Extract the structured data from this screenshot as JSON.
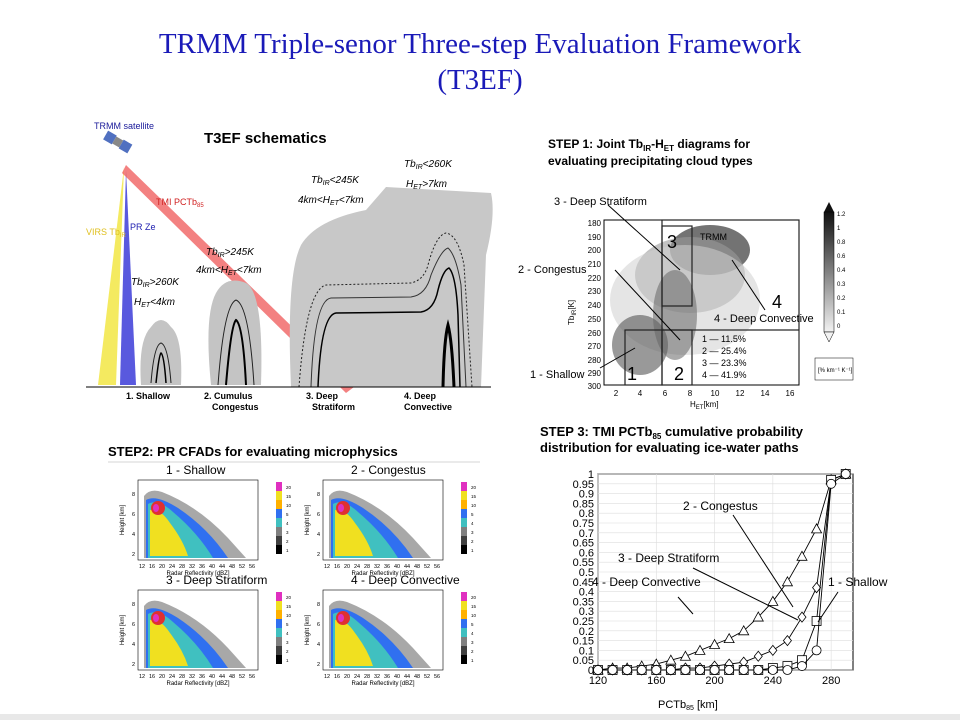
{
  "slide": {
    "title_line1": "TRMM Triple-senor Three-step Evaluation Framework",
    "title_line2": "(T3EF)"
  },
  "schematic": {
    "heading": "T3EF schematics",
    "satellite_label": "TRMM satellite",
    "virs_label": "VIRS Tb",
    "virs_sub": "IR",
    "pr_label": "PR Ze",
    "tmi_label": "TMI PCTb",
    "tmi_sub": "85",
    "categories": [
      "1. Shallow",
      "2. Cumulus",
      "3. Deep",
      "4. Deep"
    ],
    "categories_line2": [
      "",
      "Congestus",
      "Stratiform",
      "Convective"
    ],
    "criteria": [
      {
        "l1": "Tb",
        "l1s": "IR",
        "l1r": ">260K",
        "l2": "H",
        "l2s": "ET",
        "l2r": "<4km"
      },
      {
        "l1": "Tb",
        "l1s": "IR",
        "l1r": ">245K",
        "l2": "4km<H",
        "l2s": "ET",
        "l2r": "<7km"
      },
      {
        "l1": "Tb",
        "l1s": "IR",
        "l1r": "<245K",
        "l2": "4km<H",
        "l2s": "ET",
        "l2r": "<7km"
      },
      {
        "l1": "Tb",
        "l1s": "IR",
        "l1r": "<260K",
        "l2": "H",
        "l2s": "ET",
        "l2r": ">7km"
      }
    ],
    "colors": {
      "virs": "#f4ea60",
      "pr": "#3c3cd8",
      "tmi": "#ee4c4c",
      "cloud": "#c8c8c8"
    }
  },
  "step1": {
    "heading_a": "STEP 1: Joint Tb",
    "heading_a_sub": "IR",
    "heading_b": "-H",
    "heading_b_sub": "ET",
    "heading_c": " diagrams for",
    "heading_line2": "evaluating precipitating cloud types",
    "plot_title": "TRMM",
    "ylabel": "Tb",
    "ylabel_sub": "IR",
    "ylabel_unit": "[K]",
    "xlabel": "H",
    "xlabel_sub": "ET",
    "xlabel_unit": "[km]",
    "yticks": [
      "180",
      "190",
      "200",
      "210",
      "220",
      "230",
      "240",
      "250",
      "260",
      "270",
      "280",
      "290",
      "300"
    ],
    "xticks": [
      "2",
      "4",
      "6",
      "8",
      "10",
      "12",
      "14",
      "16"
    ],
    "box_numbers": [
      "1",
      "2",
      "3",
      "4"
    ],
    "legend_rows": [
      "1  —  11.5%",
      "2  —  25.4%",
      "3  —  23.3%",
      "4  —  41.9%"
    ],
    "annotations": [
      "3 - Deep Stratiform",
      "2 - Congestus",
      "4 - Deep Convective",
      "1 - Shallow"
    ],
    "colorbar_ticks": [
      "1.2",
      "1",
      "0.8",
      "0.6",
      "0.4",
      "0.3",
      "0.2",
      "0.1",
      "0"
    ],
    "colorbar_unit": "[% km⁻¹ K⁻¹]"
  },
  "step2": {
    "heading": "STEP2: PR CFADs for evaluating microphysics",
    "panels": [
      "1 - Shallow",
      "2 - Congestus",
      "3 - Deep Stratiform",
      "4 - Deep Convective"
    ],
    "ylabel": "Height [km]",
    "xlabel": "Radar Reflectivity [dBZ]",
    "xticks": [
      "12",
      "16",
      "20",
      "24",
      "28",
      "32",
      "36",
      "40",
      "44",
      "48",
      "52",
      "56"
    ],
    "yticks": [
      "2",
      "4",
      "6",
      "8"
    ],
    "colorbar_ticks": [
      "20",
      "15",
      "10",
      "5",
      "4",
      "3",
      "2",
      "1"
    ]
  },
  "step3": {
    "heading_a": "STEP 3: TMI PCTb",
    "heading_a_sub": "85",
    "heading_b": " cumulative probability",
    "heading_line2": "distribution for evaluating ice-water paths",
    "xlabel": "PCTb",
    "xlabel_sub": "85",
    "xlabel_unit": "[km]",
    "annotations": [
      "2 - Congestus",
      "3 - Deep Stratiform",
      "4 - Deep Convective",
      "1 - Shallow"
    ]
  },
  "chart_data": {
    "type": "line",
    "title": "",
    "xlabel": "PCTb85 [km]",
    "ylabel": "",
    "xlim": [
      120,
      295
    ],
    "ylim": [
      0,
      1.0
    ],
    "xticks": [
      120,
      160,
      200,
      240,
      280
    ],
    "yticks": [
      0,
      0.05,
      0.1,
      0.15,
      0.2,
      0.25,
      0.3,
      0.35,
      0.4,
      0.45,
      0.5,
      0.55,
      0.6,
      0.65,
      0.7,
      0.75,
      0.8,
      0.85,
      0.9,
      0.95,
      1
    ],
    "grid": true,
    "series": [
      {
        "name": "4 - Deep Convective",
        "marker": "triangle",
        "x": [
          120,
          130,
          140,
          150,
          160,
          170,
          180,
          190,
          200,
          210,
          220,
          230,
          240,
          250,
          260,
          270,
          280,
          290
        ],
        "y": [
          0,
          0.01,
          0.01,
          0.02,
          0.03,
          0.05,
          0.07,
          0.1,
          0.13,
          0.16,
          0.2,
          0.27,
          0.35,
          0.45,
          0.58,
          0.72,
          0.97,
          1.0
        ]
      },
      {
        "name": "3 - Deep Stratiform",
        "marker": "diamond",
        "x": [
          120,
          130,
          140,
          150,
          160,
          170,
          180,
          190,
          200,
          210,
          220,
          230,
          240,
          250,
          260,
          270,
          280,
          290
        ],
        "y": [
          0,
          0,
          0,
          0,
          0,
          0,
          0.01,
          0.01,
          0.02,
          0.03,
          0.04,
          0.07,
          0.1,
          0.15,
          0.27,
          0.42,
          0.97,
          1.0
        ]
      },
      {
        "name": "2 - Congestus",
        "marker": "square",
        "x": [
          120,
          130,
          140,
          150,
          160,
          170,
          180,
          190,
          200,
          210,
          220,
          230,
          240,
          250,
          260,
          270,
          280,
          290
        ],
        "y": [
          0,
          0,
          0,
          0,
          0,
          0,
          0,
          0,
          0,
          0,
          0,
          0,
          0.01,
          0.02,
          0.05,
          0.25,
          0.97,
          1.0
        ]
      },
      {
        "name": "1 - Shallow",
        "marker": "circle",
        "x": [
          120,
          130,
          140,
          150,
          160,
          170,
          180,
          190,
          200,
          210,
          220,
          230,
          240,
          250,
          260,
          270,
          280,
          290
        ],
        "y": [
          0,
          0,
          0,
          0,
          0,
          0,
          0,
          0,
          0,
          0,
          0,
          0,
          0,
          0,
          0.02,
          0.1,
          0.95,
          1.0
        ]
      }
    ]
  }
}
